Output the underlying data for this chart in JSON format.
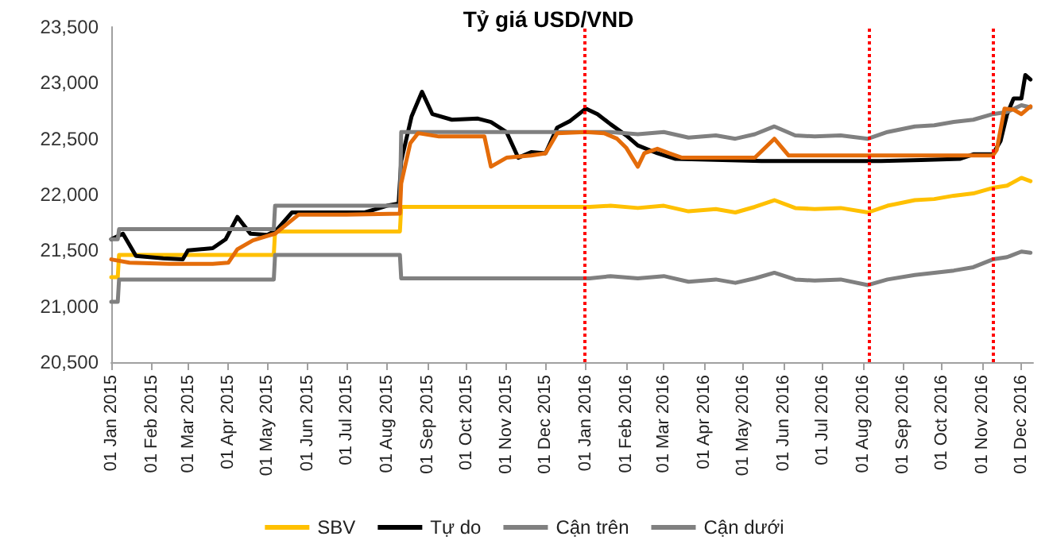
{
  "chart_data": {
    "type": "line",
    "title": "Tỷ giá USD/VND",
    "legend": "bottom",
    "grid": false,
    "marker": "none",
    "line_style": "solid",
    "xlim": [
      "2015-01-01",
      "2016-12-10"
    ],
    "xticks": [
      {
        "value": "2015-01-01",
        "label": "01 Jan 2015"
      },
      {
        "value": "2015-02-01",
        "label": "01 Feb 2015"
      },
      {
        "value": "2015-03-01",
        "label": "01 Mar 2015"
      },
      {
        "value": "2015-04-01",
        "label": "01 Apr 2015"
      },
      {
        "value": "2015-05-01",
        "label": "01 May 2015"
      },
      {
        "value": "2015-06-01",
        "label": "01 Jun 2015"
      },
      {
        "value": "2015-07-01",
        "label": "01 Jul 2015"
      },
      {
        "value": "2015-08-01",
        "label": "01 Aug 2015"
      },
      {
        "value": "2015-09-01",
        "label": "01 Sep 2015"
      },
      {
        "value": "2015-10-01",
        "label": "01 Oct 2015"
      },
      {
        "value": "2015-11-01",
        "label": "01 Nov 2015"
      },
      {
        "value": "2015-12-01",
        "label": "01 Dec 2015"
      },
      {
        "value": "2016-01-01",
        "label": "01 Jan 2016"
      },
      {
        "value": "2016-02-01",
        "label": "01 Feb 2016"
      },
      {
        "value": "2016-03-01",
        "label": "01 Mar 2016"
      },
      {
        "value": "2016-04-01",
        "label": "01 Apr 2016"
      },
      {
        "value": "2016-05-01",
        "label": "01 May 2016"
      },
      {
        "value": "2016-06-01",
        "label": "01 Jun 2016"
      },
      {
        "value": "2016-07-01",
        "label": "01 Jul 2016"
      },
      {
        "value": "2016-08-01",
        "label": "01 Aug 2016"
      },
      {
        "value": "2016-09-01",
        "label": "01 Sep 2016"
      },
      {
        "value": "2016-10-01",
        "label": "01 Oct 2016"
      },
      {
        "value": "2016-11-01",
        "label": "01 Nov 2016"
      },
      {
        "value": "2016-12-01",
        "label": "01 Dec 2016"
      }
    ],
    "ylim": [
      20500,
      23500
    ],
    "yticks": [
      {
        "value": 20500,
        "label": "20,500"
      },
      {
        "value": 21000,
        "label": "21,000"
      },
      {
        "value": 21500,
        "label": "21,500"
      },
      {
        "value": 22000,
        "label": "22,000"
      },
      {
        "value": 22500,
        "label": "22,500"
      },
      {
        "value": 23000,
        "label": "23,000"
      },
      {
        "value": 23500,
        "label": "23,500"
      }
    ],
    "ref_lines": [
      {
        "axis": "x",
        "value": "2015-12-31",
        "color": "#ff0000",
        "line_style": "dotted"
      },
      {
        "axis": "x",
        "value": "2016-08-06",
        "color": "#ff0000",
        "line_style": "dotted"
      },
      {
        "axis": "x",
        "value": "2016-11-09",
        "color": "#ff0000",
        "line_style": "dotted"
      }
    ],
    "series": [
      {
        "name": "SBV",
        "color": "#ffc000",
        "x": [
          "2015-01-01",
          "2015-01-06",
          "2015-01-07",
          "2015-05-06",
          "2015-05-07",
          "2015-08-11",
          "2015-08-12",
          "2016-01-04",
          "2016-01-20",
          "2016-02-10",
          "2016-03-01",
          "2016-03-20",
          "2016-04-10",
          "2016-04-25",
          "2016-05-10",
          "2016-05-25",
          "2016-06-10",
          "2016-06-25",
          "2016-07-15",
          "2016-08-05",
          "2016-08-20",
          "2016-09-10",
          "2016-09-25",
          "2016-10-10",
          "2016-10-25",
          "2016-11-09",
          "2016-11-20",
          "2016-12-01",
          "2016-12-08"
        ],
        "values": [
          21260,
          21260,
          21460,
          21460,
          21670,
          21670,
          21890,
          21890,
          21900,
          21880,
          21900,
          21850,
          21870,
          21840,
          21890,
          21950,
          21880,
          21870,
          21880,
          21840,
          21900,
          21950,
          21960,
          21990,
          22010,
          22060,
          22080,
          22150,
          22120
        ]
      },
      {
        "name": "Tự do",
        "color": "#000000",
        "x": [
          "2015-01-01",
          "2015-01-10",
          "2015-01-20",
          "2015-02-10",
          "2015-02-25",
          "2015-03-01",
          "2015-03-20",
          "2015-03-30",
          "2015-04-08",
          "2015-04-18",
          "2015-05-01",
          "2015-05-08",
          "2015-05-20",
          "2015-06-15",
          "2015-07-15",
          "2015-08-01",
          "2015-08-10",
          "2015-08-12",
          "2015-08-20",
          "2015-08-28",
          "2015-09-05",
          "2015-09-20",
          "2015-10-10",
          "2015-10-20",
          "2015-11-01",
          "2015-11-10",
          "2015-11-20",
          "2015-12-01",
          "2015-12-10",
          "2015-12-20",
          "2016-01-01",
          "2016-01-10",
          "2016-01-20",
          "2016-02-01",
          "2016-02-10",
          "2016-02-25",
          "2016-03-10",
          "2016-04-15",
          "2016-05-15",
          "2016-06-15",
          "2016-07-15",
          "2016-08-15",
          "2016-09-15",
          "2016-10-15",
          "2016-10-25",
          "2016-11-09",
          "2016-11-15",
          "2016-11-20",
          "2016-11-25",
          "2016-12-01",
          "2016-12-04",
          "2016-12-08"
        ],
        "values": [
          21600,
          21650,
          21450,
          21430,
          21420,
          21500,
          21520,
          21600,
          21800,
          21650,
          21640,
          21680,
          21840,
          21840,
          21840,
          21900,
          21920,
          22300,
          22700,
          22920,
          22720,
          22670,
          22680,
          22650,
          22560,
          22330,
          22380,
          22370,
          22600,
          22660,
          22770,
          22720,
          22630,
          22530,
          22440,
          22370,
          22320,
          22310,
          22300,
          22300,
          22300,
          22300,
          22310,
          22320,
          22360,
          22360,
          22480,
          22720,
          22860,
          22860,
          23070,
          23030
        ]
      },
      {
        "name": "Cận trên",
        "color": "#808080",
        "x": [
          "2015-01-01",
          "2015-01-06",
          "2015-01-07",
          "2015-05-06",
          "2015-05-07",
          "2015-08-11",
          "2015-08-12",
          "2016-01-04",
          "2016-01-20",
          "2016-02-10",
          "2016-03-01",
          "2016-03-20",
          "2016-04-10",
          "2016-04-25",
          "2016-05-10",
          "2016-05-25",
          "2016-06-10",
          "2016-06-25",
          "2016-07-15",
          "2016-08-05",
          "2016-08-20",
          "2016-09-10",
          "2016-09-25",
          "2016-10-10",
          "2016-10-25",
          "2016-11-09",
          "2016-11-20",
          "2016-12-01",
          "2016-12-08"
        ],
        "values": [
          21600,
          21600,
          21690,
          21690,
          21900,
          21900,
          22560,
          22560,
          22560,
          22540,
          22560,
          22510,
          22530,
          22500,
          22540,
          22610,
          22530,
          22520,
          22530,
          22500,
          22560,
          22610,
          22620,
          22650,
          22670,
          22720,
          22740,
          22800,
          22780
        ]
      },
      {
        "color": "#e46c0a",
        "x": [
          "2015-01-01",
          "2015-01-15",
          "2015-02-15",
          "2015-03-20",
          "2015-04-01",
          "2015-04-08",
          "2015-04-20",
          "2015-05-01",
          "2015-05-07",
          "2015-05-25",
          "2015-07-01",
          "2015-08-11",
          "2015-08-12",
          "2015-08-19",
          "2015-08-25",
          "2015-09-10",
          "2015-10-15",
          "2015-10-20",
          "2015-11-01",
          "2015-11-20",
          "2015-12-01",
          "2015-12-10",
          "2016-01-01",
          "2016-01-15",
          "2016-01-25",
          "2016-02-01",
          "2016-02-10",
          "2016-02-15",
          "2016-02-25",
          "2016-03-05",
          "2016-03-15",
          "2016-05-10",
          "2016-05-25",
          "2016-06-05",
          "2016-11-09",
          "2016-11-12",
          "2016-11-18",
          "2016-11-25",
          "2016-12-01",
          "2016-12-08"
        ],
        "values": [
          21420,
          21390,
          21380,
          21380,
          21390,
          21510,
          21590,
          21630,
          21650,
          21820,
          21820,
          21830,
          22100,
          22460,
          22550,
          22520,
          22520,
          22250,
          22330,
          22350,
          22370,
          22550,
          22560,
          22550,
          22500,
          22420,
          22250,
          22370,
          22410,
          22370,
          22330,
          22330,
          22500,
          22350,
          22350,
          22400,
          22770,
          22760,
          22720,
          22790
        ]
      },
      {
        "name": "Cận dưới",
        "color": "#808080",
        "x": [
          "2015-01-01",
          "2015-01-06",
          "2015-01-07",
          "2015-05-06",
          "2015-05-07",
          "2015-08-11",
          "2015-08-12",
          "2016-01-04",
          "2016-01-20",
          "2016-02-10",
          "2016-03-01",
          "2016-03-20",
          "2016-04-10",
          "2016-04-25",
          "2016-05-10",
          "2016-05-25",
          "2016-06-10",
          "2016-06-25",
          "2016-07-15",
          "2016-08-05",
          "2016-08-20",
          "2016-09-10",
          "2016-09-25",
          "2016-10-10",
          "2016-10-25",
          "2016-11-09",
          "2016-11-20",
          "2016-12-01",
          "2016-12-08"
        ],
        "values": [
          21040,
          21040,
          21240,
          21240,
          21460,
          21460,
          21250,
          21250,
          21270,
          21250,
          21270,
          21220,
          21240,
          21210,
          21250,
          21300,
          21240,
          21230,
          21240,
          21190,
          21240,
          21280,
          21300,
          21320,
          21350,
          21420,
          21440,
          21490,
          21480
        ]
      }
    ]
  }
}
